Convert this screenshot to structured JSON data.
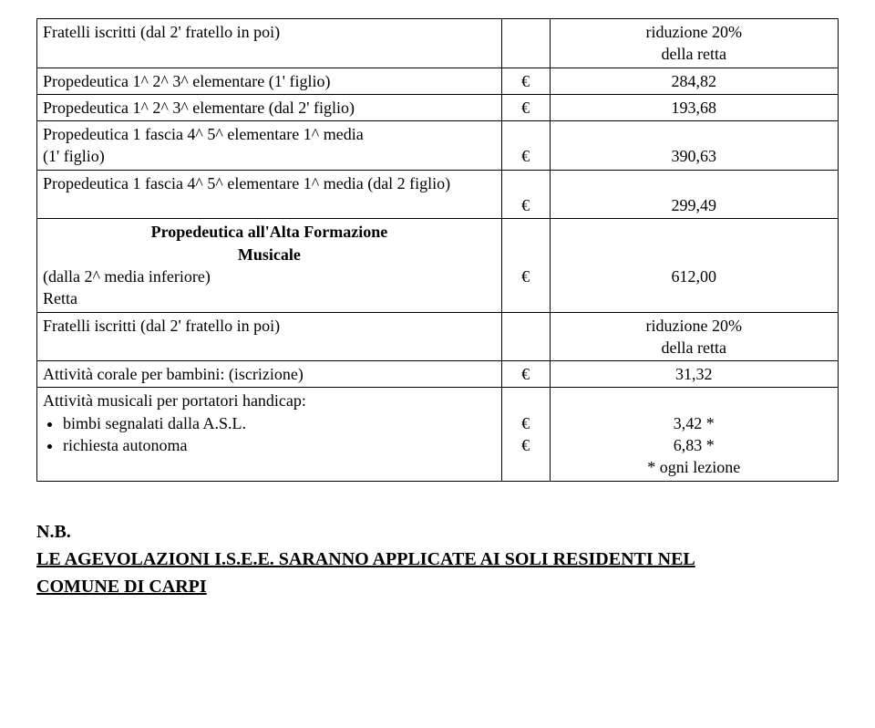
{
  "euro": "€",
  "rows": {
    "r0": {
      "desc": "Fratelli iscritti (dal 2' fratello in poi)",
      "val": "riduzione 20%\ndella retta"
    },
    "r1": {
      "desc": "Propedeutica 1^ 2^ 3^ elementare  (1' figlio)",
      "val": "284,82"
    },
    "r2": {
      "desc": "Propedeutica 1^ 2^ 3^ elementare (dal 2' figlio)",
      "val": "193,68"
    },
    "r3": {
      "desc": "Propedeutica 1 fascia 4^ 5^ elementare 1^ media\n(1' figlio)",
      "val": "390,63"
    },
    "r4": {
      "desc": "Propedeutica 1 fascia 4^ 5^ elementare 1^ media (dal 2 figlio)",
      "val": "299,49"
    },
    "r5": {
      "desc_bold_line1": "Propedeutica all'Alta Formazione",
      "desc_bold_line2": "Musicale",
      "desc_plain1": "(dalla 2^ media inferiore)",
      "desc_plain2": "Retta",
      "val": "612,00"
    },
    "r6": {
      "desc": "Fratelli iscritti (dal 2' fratello in poi)",
      "val": "riduzione 20%\ndella retta"
    },
    "r7": {
      "desc": "Attività corale per bambini:  (iscrizione)",
      "val": "31,32"
    },
    "r8": {
      "desc_line1": "Attività musicali per portatori handicap:",
      "bullet1": "bimbi segnalati dalla A.S.L.",
      "bullet2": "richiesta autonoma",
      "val_line1": "3,42 *",
      "val_line2": "6,83 *",
      "val_line3": "* ogni lezione"
    }
  },
  "note": {
    "nb": "N.B.",
    "line1_a": "LE AGEVOLAZIONI   I.S.E.E.   SARANNO APPLICATE AI SOLI RESIDENTI NEL",
    "line2": "COMUNE DI CARPI"
  }
}
